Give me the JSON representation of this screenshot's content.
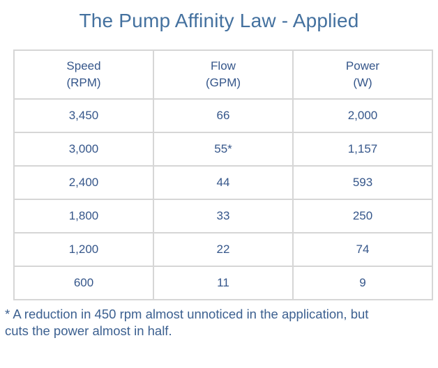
{
  "title": "The Pump Affinity Law - Applied",
  "table": {
    "headers": [
      {
        "line1": "Speed",
        "line2": "(RPM)"
      },
      {
        "line1": "Flow",
        "line2": "(GPM)"
      },
      {
        "line1": "Power",
        "line2": "(W)"
      }
    ],
    "rows": [
      [
        "3,450",
        "66",
        "2,000"
      ],
      [
        "3,000",
        "55*",
        "1,157"
      ],
      [
        "2,400",
        "44",
        "593"
      ],
      [
        "1,800",
        "33",
        "250"
      ],
      [
        "1,200",
        "22",
        "74"
      ],
      [
        "600",
        "11",
        "9"
      ]
    ]
  },
  "footnote": {
    "line1": "* A reduction in 450 rpm almost unnoticed in the application, but",
    "line2": "cuts the power almost in half."
  },
  "colors": {
    "title_blue": "#44719f",
    "table_text_blue": "#35568a",
    "footnote_blue": "#3c6090",
    "border_gray": "#d6d6d6",
    "background": "#ffffff"
  },
  "chart_data": {
    "type": "table",
    "title": "The Pump Affinity Law - Applied",
    "columns": [
      "Speed (RPM)",
      "Flow (GPM)",
      "Power (W)"
    ],
    "rows": [
      [
        3450,
        66,
        2000
      ],
      [
        3000,
        55,
        1157
      ],
      [
        2400,
        44,
        593
      ],
      [
        1800,
        33,
        250
      ],
      [
        1200,
        22,
        74
      ],
      [
        600,
        11,
        9
      ]
    ],
    "annotations": "Flow value 55 GPM is marked with an asterisk referencing the footnote",
    "footnote": "* A reduction in 450 rpm almost unnoticed in the application, but cuts the power almost in half."
  }
}
